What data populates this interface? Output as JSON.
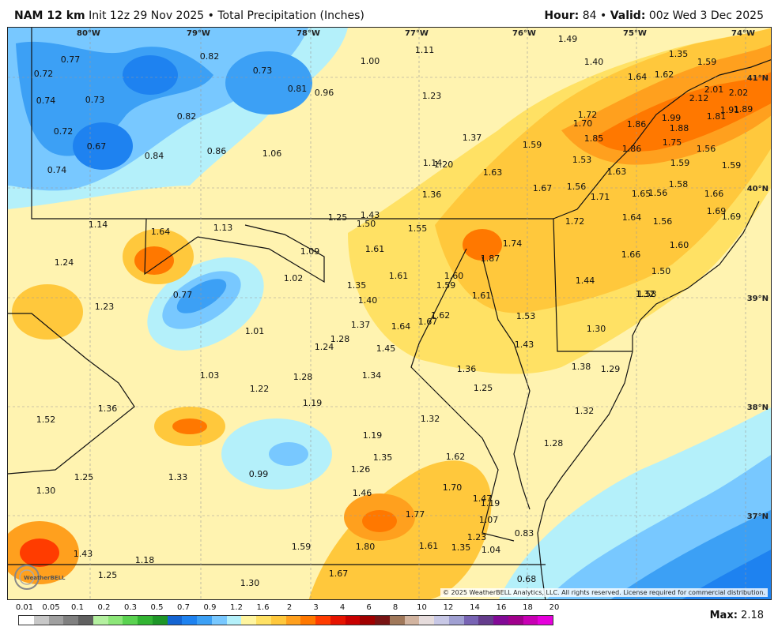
{
  "header": {
    "model": "NAM 12 km",
    "init": "Init 12z 29 Nov 2025",
    "bullet": "•",
    "product": "Total Precipitation (Inches)",
    "hour_label": "Hour:",
    "hour": "84",
    "valid_label": "Valid:",
    "valid": "00z Wed 3 Dec 2025"
  },
  "copyright": "© 2025 WeatherBELL Analytics, LLC. All rights reserved. License required for commercial distribution.",
  "logo_text": "WeatherBELL",
  "lon_labels": [
    "80°W",
    "79°W",
    "78°W",
    "77°W",
    "76°W",
    "75°W",
    "74°W"
  ],
  "lat_labels": [
    "41°N",
    "40°N",
    "39°N",
    "38°N",
    "37°N"
  ],
  "values": [
    "0.77",
    "0.72",
    "0.74",
    "0.73",
    "0.72",
    "0.67",
    "0.74",
    "0.82",
    "0.73",
    "0.82",
    "0.81",
    "0.96",
    "0.84",
    "0.86",
    "1.00",
    "1.11",
    "1.23",
    "1.49",
    "1.40",
    "1.35",
    "1.59",
    "1.64",
    "1.62",
    "2.01",
    "2.12",
    "2.02",
    "1.72",
    "1.70",
    "1.99",
    "1.86",
    "1.91",
    "1.89",
    "1.81",
    "1.88",
    "1.85",
    "1.86",
    "1.75",
    "1.56",
    "1.06",
    "1.37",
    "1.59",
    "1.53",
    "1.63",
    "1.65",
    "1.59",
    "1.59",
    "1.14",
    "1.20",
    "1.63",
    "1.67",
    "1.56",
    "1.71",
    "1.56",
    "1.58",
    "1.66",
    "1.36",
    "1.25",
    "1.43",
    "1.50",
    "1.55",
    "1.72",
    "1.64",
    "1.56",
    "1.69",
    "1.69",
    "1.14",
    "1.64",
    "1.13",
    "1.09",
    "1.61",
    "1.87",
    "1.74",
    "1.66",
    "1.60",
    "1.24",
    "1.02",
    "1.61",
    "1.60",
    "1.59",
    "1.44",
    "1.50",
    "1.58",
    "1.23",
    "0.77",
    "1.35",
    "1.40",
    "1.61",
    "1.62",
    "1.53",
    "1.32",
    "1.37",
    "1.64",
    "1.67",
    "1.30",
    "1.01",
    "1.28",
    "1.45",
    "1.43",
    "1.24",
    "1.36",
    "1.38",
    "1.29",
    "1.03",
    "1.28",
    "1.34",
    "1.25",
    "1.36",
    "1.22",
    "1.19",
    "1.32",
    "1.52",
    "1.32",
    "1.19",
    "1.28",
    "1.33",
    "1.35",
    "1.62",
    "0.99",
    "1.26",
    "1.70",
    "1.25",
    "1.46",
    "1.47",
    "1.19",
    "1.30",
    "1.77",
    "1.07",
    "0.83",
    "1.43",
    "1.59",
    "1.80",
    "1.61",
    "1.35",
    "1.23",
    "1.04",
    "1.18",
    "1.25",
    "1.67",
    "0.68",
    "1.30"
  ],
  "scale": {
    "labels": [
      "0.01",
      "0.05",
      "0.1",
      "0.2",
      "0.3",
      "0.5",
      "0.7",
      "0.9",
      "1.2",
      "1.6",
      "2",
      "3",
      "4",
      "6",
      "8",
      "10",
      "12",
      "14",
      "16",
      "18",
      "20"
    ],
    "colors": [
      "#ffffff",
      "#c8c8c8",
      "#a0a0a0",
      "#808080",
      "#606060",
      "#b4f0a0",
      "#8ce678",
      "#5ad250",
      "#32b432",
      "#1e9628",
      "#1464d2",
      "#1e82f0",
      "#3ca0f5",
      "#78c8ff",
      "#b4f0fa",
      "#fff5a0",
      "#ffe164",
      "#ffc83c",
      "#ffa01e",
      "#ff7800",
      "#ff3c00",
      "#e61400",
      "#c80000",
      "#a00000",
      "#781414",
      "#a0785a",
      "#d2b4a0",
      "#e6dcdc",
      "#c8c8e6",
      "#a0a0d2",
      "#7864b4",
      "#643c8c",
      "#820a96",
      "#a0008c",
      "#c800b4",
      "#e600dc"
    ]
  },
  "max": {
    "label": "Max:",
    "value": "2.18"
  }
}
